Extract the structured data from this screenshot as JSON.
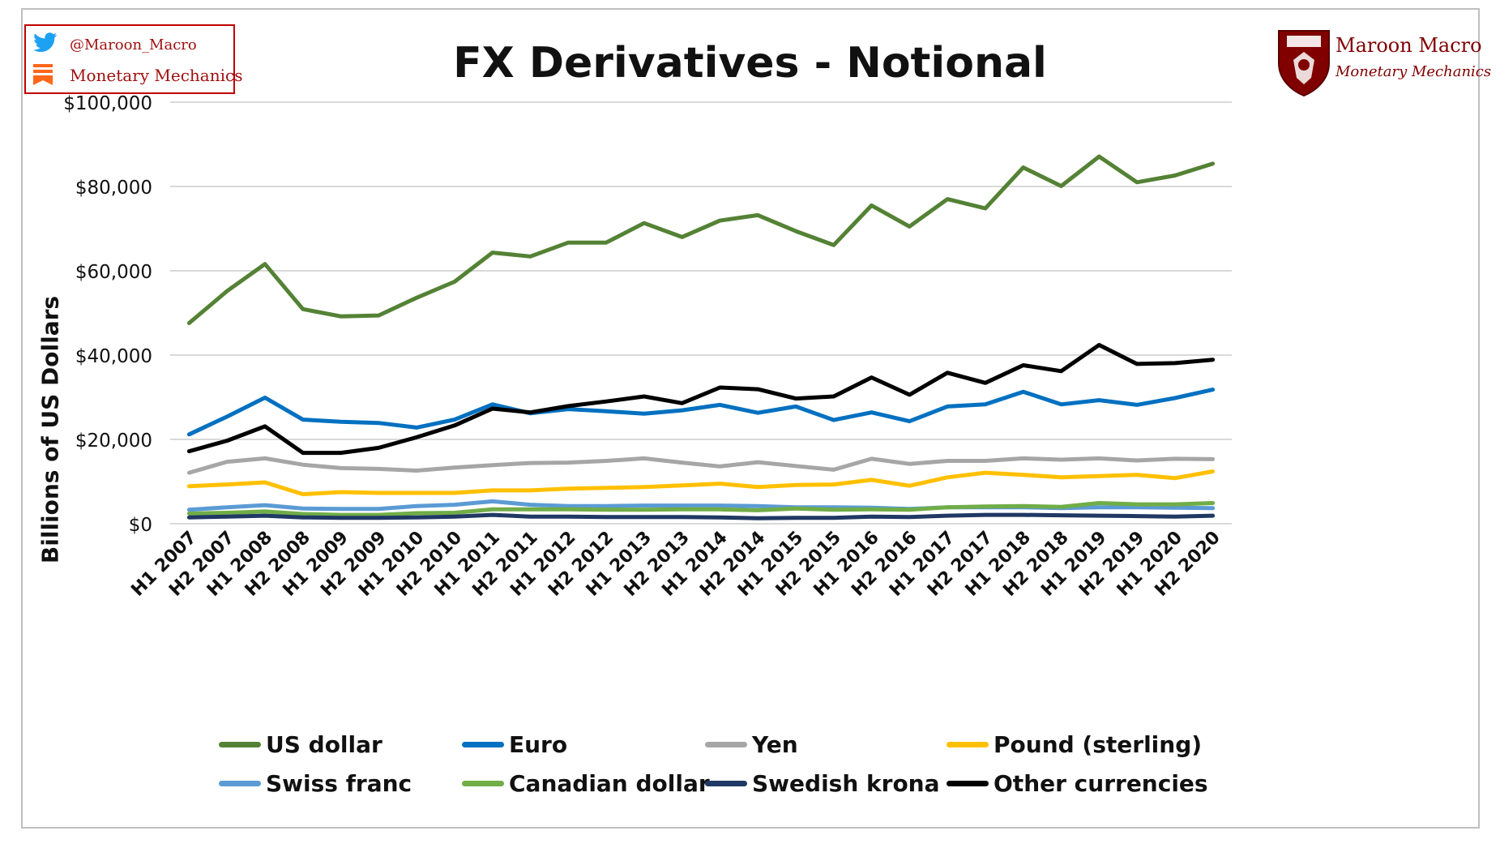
{
  "header": {
    "title": "FX Derivatives - Notional",
    "brand_handle": "@Maroon_Macro",
    "brand_name": "Monetary Mechanics",
    "logo_title": "Maroon Macro",
    "logo_subtitle": "Monetary Mechanics"
  },
  "colors": {
    "brand_red": "#c00000",
    "logo_maroon": "#800000",
    "twitter_blue": "#1da1f2",
    "substack_orange": "#ff6719"
  },
  "icons": [
    "twitter-icon",
    "substack-icon",
    "university-crest-icon"
  ],
  "chart_data": {
    "type": "line",
    "title": "FX Derivatives - Notional",
    "ylabel": "Billions of US Dollars",
    "xlabel": "",
    "ylim": [
      0,
      100000
    ],
    "yticks": [
      0,
      20000,
      40000,
      60000,
      80000,
      100000
    ],
    "ytick_labels": [
      "$0",
      "$20,000",
      "$40,000",
      "$60,000",
      "$80,000",
      "$100,000"
    ],
    "grid": true,
    "legend_position": "bottom",
    "categories": [
      "H1 2007",
      "H2 2007",
      "H1 2008",
      "H2 2008",
      "H1 2009",
      "H2 2009",
      "H1 2010",
      "H2 2010",
      "H1 2011",
      "H2 2011",
      "H1 2012",
      "H2 2012",
      "H1 2013",
      "H2 2013",
      "H1 2014",
      "H2 2014",
      "H1 2015",
      "H2 2015",
      "H1 2016",
      "H2 2016",
      "H1 2017",
      "H2 2017",
      "H1 2018",
      "H2 2018",
      "H1 2019",
      "H2 2019",
      "H1 2020",
      "H2 2020"
    ],
    "series": [
      {
        "name": "US dollar",
        "color": "#548235",
        "values": [
          47600,
          55200,
          61600,
          50900,
          49200,
          49400,
          53600,
          57400,
          64300,
          63400,
          66700,
          66700,
          71300,
          68000,
          71900,
          73200,
          69400,
          66100,
          75500,
          70500,
          77000,
          74800,
          84500,
          80100,
          87100,
          81000,
          82600,
          85400
        ]
      },
      {
        "name": "Euro",
        "color": "#0070c0",
        "values": [
          21200,
          25400,
          29900,
          24700,
          24200,
          23900,
          22800,
          24700,
          28300,
          26200,
          27200,
          26700,
          26100,
          26900,
          28200,
          26300,
          27800,
          24600,
          26400,
          24300,
          27800,
          28300,
          31300,
          28300,
          29300,
          28200,
          29800,
          31800
        ]
      },
      {
        "name": "Yen",
        "color": "#a6a6a6",
        "values": [
          12100,
          14700,
          15500,
          14000,
          13200,
          13000,
          12600,
          13300,
          13900,
          14400,
          14500,
          14900,
          15500,
          14500,
          13600,
          14600,
          13700,
          12800,
          15400,
          14200,
          14900,
          14900,
          15500,
          15200,
          15500,
          15000,
          15400,
          15300
        ]
      },
      {
        "name": "Pound (sterling)",
        "color": "#ffc000",
        "values": [
          8900,
          9300,
          9800,
          7000,
          7500,
          7300,
          7300,
          7300,
          7900,
          7900,
          8300,
          8500,
          8700,
          9100,
          9500,
          8700,
          9200,
          9300,
          10400,
          9000,
          11000,
          12100,
          11600,
          11000,
          11300,
          11600,
          10800,
          12400
        ]
      },
      {
        "name": "Swiss franc",
        "color": "#5b9bd5",
        "values": [
          3300,
          3900,
          4400,
          3600,
          3500,
          3500,
          4200,
          4500,
          5300,
          4500,
          4200,
          4200,
          4300,
          4300,
          4300,
          4200,
          3900,
          3900,
          3800,
          3500,
          3900,
          3900,
          3900,
          3700,
          3900,
          3900,
          3800,
          3700
        ]
      },
      {
        "name": "Canadian dollar",
        "color": "#70ad47",
        "values": [
          2400,
          2600,
          2900,
          2300,
          2100,
          2100,
          2500,
          2600,
          3400,
          3400,
          3400,
          3300,
          3300,
          3400,
          3400,
          3200,
          3600,
          3300,
          3400,
          3300,
          3900,
          4100,
          4200,
          4000,
          4900,
          4600,
          4600,
          4900
        ]
      },
      {
        "name": "Swedish krona",
        "color": "#203864",
        "values": [
          1500,
          1700,
          1900,
          1500,
          1400,
          1400,
          1500,
          1700,
          2100,
          1700,
          1700,
          1600,
          1600,
          1600,
          1500,
          1300,
          1400,
          1400,
          1700,
          1600,
          1900,
          2100,
          2100,
          2000,
          1900,
          1800,
          1700,
          1900
        ]
      },
      {
        "name": "Other currencies",
        "color": "#000000",
        "values": [
          17200,
          19700,
          23100,
          16800,
          16800,
          18000,
          20500,
          23300,
          27300,
          26400,
          27900,
          29000,
          30200,
          28600,
          32300,
          31900,
          29700,
          30200,
          34700,
          30600,
          35800,
          33400,
          37600,
          36200,
          42400,
          37900,
          38100,
          38900
        ]
      }
    ]
  }
}
